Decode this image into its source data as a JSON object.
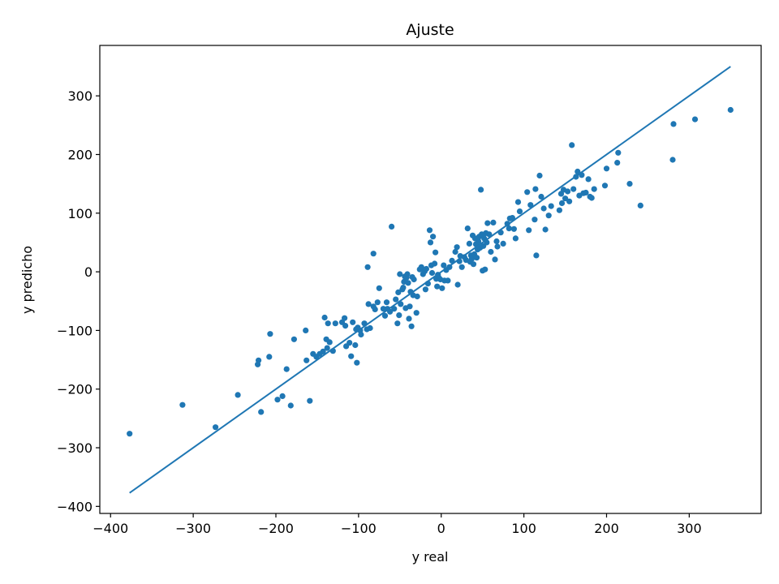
{
  "chart_data": {
    "type": "scatter",
    "title": "Ajuste",
    "xlabel": "y real",
    "ylabel": "y predicho",
    "xlim": [
      -413,
      387
    ],
    "ylim": [
      -412,
      386
    ],
    "xticks": [
      -400,
      -300,
      -200,
      -100,
      0,
      100,
      200,
      300
    ],
    "yticks": [
      -400,
      -300,
      -200,
      -100,
      0,
      100,
      200,
      300
    ],
    "xtick_labels": [
      "−400",
      "−300",
      "−200",
      "−100",
      "0",
      "100",
      "200",
      "300"
    ],
    "ytick_labels": [
      "−400",
      "−300",
      "−200",
      "−100",
      "0",
      "100",
      "200",
      "300"
    ],
    "grid": false,
    "colors": {
      "points": "#1f77b4",
      "line": "#1f77b4"
    },
    "line": {
      "x": [
        -377,
        350
      ],
      "y": [
        -377,
        350
      ]
    },
    "points": [
      [
        -377,
        -276
      ],
      [
        -313,
        -227
      ],
      [
        -273,
        -265
      ],
      [
        -246,
        -210
      ],
      [
        -222,
        -158
      ],
      [
        -221,
        -151
      ],
      [
        -218,
        -239
      ],
      [
        -207,
        -106
      ],
      [
        -208,
        -145
      ],
      [
        -198,
        -218
      ],
      [
        -192,
        -212
      ],
      [
        -187,
        -166
      ],
      [
        -182,
        -228
      ],
      [
        -178,
        -115
      ],
      [
        -164,
        -100
      ],
      [
        -163,
        -151
      ],
      [
        -159,
        -220
      ],
      [
        -155,
        -140
      ],
      [
        -151,
        -145
      ],
      [
        -147,
        -140
      ],
      [
        -143,
        -136
      ],
      [
        -141,
        -78
      ],
      [
        -139,
        -115
      ],
      [
        -138,
        -130
      ],
      [
        -137,
        -88
      ],
      [
        -135,
        -120
      ],
      [
        -131,
        -135
      ],
      [
        -128,
        -88
      ],
      [
        -120,
        -86
      ],
      [
        -117,
        -79
      ],
      [
        -116,
        -92
      ],
      [
        -115,
        -127
      ],
      [
        -111,
        -121
      ],
      [
        -109,
        -144
      ],
      [
        -107,
        -86
      ],
      [
        -104,
        -125
      ],
      [
        -103,
        -98
      ],
      [
        -102,
        -155
      ],
      [
        -101,
        -95
      ],
      [
        -98,
        -100
      ],
      [
        -97,
        -107
      ],
      [
        -93,
        -88
      ],
      [
        -90,
        -98
      ],
      [
        -89,
        8
      ],
      [
        -88,
        -55
      ],
      [
        -86,
        -96
      ],
      [
        -82,
        31
      ],
      [
        -82,
        -59
      ],
      [
        -80,
        -64
      ],
      [
        -77,
        -52
      ],
      [
        -75,
        -28
      ],
      [
        -70,
        -63
      ],
      [
        -68,
        -75
      ],
      [
        -66,
        -52
      ],
      [
        -65,
        -63
      ],
      [
        -62,
        -68
      ],
      [
        -60,
        77
      ],
      [
        -57,
        -63
      ],
      [
        -55,
        -47
      ],
      [
        -53,
        -88
      ],
      [
        -52,
        -35
      ],
      [
        -51,
        -74
      ],
      [
        -50,
        -4
      ],
      [
        -49,
        -55
      ],
      [
        -47,
        -30
      ],
      [
        -46,
        -27
      ],
      [
        -45,
        -17
      ],
      [
        -44,
        -8
      ],
      [
        -43,
        -62
      ],
      [
        -42,
        -10
      ],
      [
        -41,
        -4
      ],
      [
        -40,
        -19
      ],
      [
        -39,
        -80
      ],
      [
        -38,
        -59
      ],
      [
        -37,
        -34
      ],
      [
        -36,
        -93
      ],
      [
        -35,
        -9
      ],
      [
        -34,
        -40
      ],
      [
        -33,
        -13
      ],
      [
        -30,
        -70
      ],
      [
        -29,
        -42
      ],
      [
        -26,
        4
      ],
      [
        -24,
        8
      ],
      [
        -22,
        -4
      ],
      [
        -20,
        1
      ],
      [
        -19,
        -30
      ],
      [
        -18,
        5
      ],
      [
        -16,
        -20
      ],
      [
        -14,
        71
      ],
      [
        -13,
        50
      ],
      [
        -12,
        11
      ],
      [
        -11,
        -2
      ],
      [
        -10,
        60
      ],
      [
        -8,
        14
      ],
      [
        -7,
        33
      ],
      [
        -6,
        -12
      ],
      [
        -5,
        -25
      ],
      [
        -4,
        -5
      ],
      [
        -3,
        -10
      ],
      [
        -1,
        -13
      ],
      [
        1,
        -28
      ],
      [
        3,
        11
      ],
      [
        4,
        -15
      ],
      [
        6,
        3
      ],
      [
        8,
        -15
      ],
      [
        10,
        8
      ],
      [
        13,
        19
      ],
      [
        17,
        34
      ],
      [
        19,
        42
      ],
      [
        20,
        -22
      ],
      [
        22,
        18
      ],
      [
        23,
        27
      ],
      [
        25,
        8
      ],
      [
        28,
        25
      ],
      [
        30,
        20
      ],
      [
        32,
        74
      ],
      [
        34,
        48
      ],
      [
        35,
        17
      ],
      [
        36,
        28
      ],
      [
        37,
        22
      ],
      [
        38,
        62
      ],
      [
        39,
        13
      ],
      [
        40,
        30
      ],
      [
        41,
        57
      ],
      [
        42,
        47
      ],
      [
        43,
        24
      ],
      [
        44,
        38
      ],
      [
        45,
        52
      ],
      [
        46,
        60
      ],
      [
        47,
        41
      ],
      [
        48,
        140
      ],
      [
        49,
        64
      ],
      [
        50,
        2
      ],
      [
        51,
        44
      ],
      [
        52,
        57
      ],
      [
        53,
        4
      ],
      [
        54,
        66
      ],
      [
        55,
        50
      ],
      [
        56,
        83
      ],
      [
        58,
        64
      ],
      [
        60,
        34
      ],
      [
        63,
        84
      ],
      [
        65,
        21
      ],
      [
        67,
        52
      ],
      [
        68,
        43
      ],
      [
        72,
        67
      ],
      [
        75,
        48
      ],
      [
        80,
        82
      ],
      [
        82,
        74
      ],
      [
        83,
        91
      ],
      [
        86,
        92
      ],
      [
        88,
        73
      ],
      [
        90,
        57
      ],
      [
        93,
        119
      ],
      [
        95,
        103
      ],
      [
        104,
        136
      ],
      [
        106,
        71
      ],
      [
        108,
        114
      ],
      [
        113,
        89
      ],
      [
        114,
        141
      ],
      [
        115,
        28
      ],
      [
        119,
        164
      ],
      [
        121,
        128
      ],
      [
        124,
        108
      ],
      [
        126,
        72
      ],
      [
        130,
        96
      ],
      [
        133,
        112
      ],
      [
        143,
        105
      ],
      [
        145,
        133
      ],
      [
        146,
        117
      ],
      [
        148,
        140
      ],
      [
        150,
        125
      ],
      [
        153,
        137
      ],
      [
        155,
        120
      ],
      [
        158,
        216
      ],
      [
        160,
        141
      ],
      [
        163,
        162
      ],
      [
        165,
        171
      ],
      [
        167,
        130
      ],
      [
        170,
        165
      ],
      [
        172,
        134
      ],
      [
        175,
        135
      ],
      [
        178,
        158
      ],
      [
        180,
        128
      ],
      [
        182,
        126
      ],
      [
        185,
        141
      ],
      [
        198,
        147
      ],
      [
        200,
        176
      ],
      [
        213,
        186
      ],
      [
        214,
        203
      ],
      [
        228,
        150
      ],
      [
        241,
        113
      ],
      [
        280,
        191
      ],
      [
        281,
        252
      ],
      [
        307,
        260
      ],
      [
        350,
        276
      ]
    ]
  }
}
